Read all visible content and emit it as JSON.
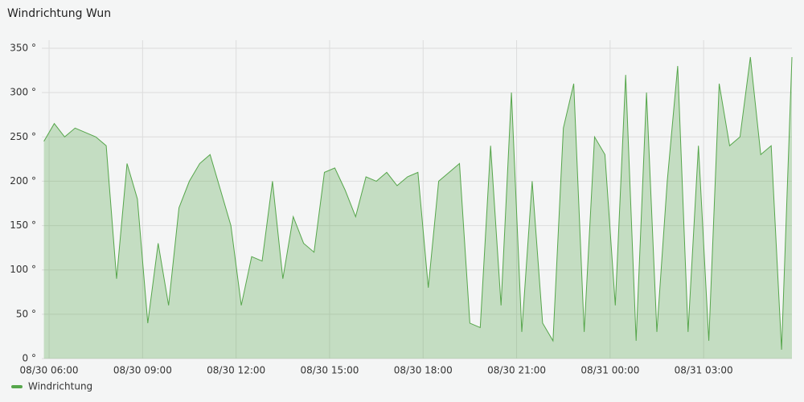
{
  "chart_data": {
    "type": "area",
    "title": "Windrichtung Wun",
    "x": [
      "08/30 05:50",
      "08/30 06:10",
      "08/30 06:30",
      "08/30 06:50",
      "08/30 07:10",
      "08/30 07:30",
      "08/30 07:50",
      "08/30 08:10",
      "08/30 08:30",
      "08/30 08:50",
      "08/30 09:10",
      "08/30 09:30",
      "08/30 09:50",
      "08/30 10:10",
      "08/30 10:30",
      "08/30 10:50",
      "08/30 11:10",
      "08/30 11:30",
      "08/30 11:50",
      "08/30 12:10",
      "08/30 12:30",
      "08/30 12:50",
      "08/30 13:10",
      "08/30 13:30",
      "08/30 13:50",
      "08/30 14:10",
      "08/30 14:30",
      "08/30 14:50",
      "08/30 15:10",
      "08/30 15:30",
      "08/30 15:50",
      "08/30 16:10",
      "08/30 16:30",
      "08/30 16:50",
      "08/30 17:10",
      "08/30 17:30",
      "08/30 17:50",
      "08/30 18:10",
      "08/30 18:30",
      "08/30 18:50",
      "08/30 19:10",
      "08/30 19:30",
      "08/30 19:50",
      "08/30 20:10",
      "08/30 20:30",
      "08/30 20:50",
      "08/30 21:10",
      "08/30 21:30",
      "08/30 21:50",
      "08/30 22:10",
      "08/30 22:30",
      "08/30 22:50",
      "08/30 23:10",
      "08/30 23:30",
      "08/30 23:50",
      "08/31 00:10",
      "08/31 00:30",
      "08/31 00:50",
      "08/31 01:10",
      "08/31 01:30",
      "08/31 01:50",
      "08/31 02:10",
      "08/31 02:30",
      "08/31 02:50",
      "08/31 03:10",
      "08/31 03:30",
      "08/31 03:50",
      "08/31 04:10",
      "08/31 04:30",
      "08/31 04:50",
      "08/31 05:10",
      "08/31 05:30",
      "08/31 05:50"
    ],
    "series": [
      {
        "name": "Windrichtung",
        "color": "#56a64b",
        "values": [
          245,
          265,
          250,
          260,
          255,
          250,
          240,
          90,
          220,
          180,
          40,
          130,
          60,
          170,
          200,
          220,
          230,
          190,
          150,
          60,
          115,
          110,
          200,
          90,
          160,
          130,
          120,
          210,
          215,
          190,
          160,
          205,
          200,
          210,
          195,
          205,
          210,
          80,
          200,
          210,
          220,
          40,
          35,
          240,
          60,
          300,
          30,
          200,
          40,
          20,
          260,
          310,
          30,
          250,
          230,
          60,
          320,
          20,
          300,
          30,
          200,
          330,
          30,
          240,
          20,
          310,
          240,
          250,
          340,
          230,
          240,
          10,
          340
        ]
      }
    ],
    "xlim": [
      "08/30 05:46",
      "08/31 05:50"
    ],
    "xticks": [
      "08/30 06:00",
      "08/30 09:00",
      "08/30 12:00",
      "08/30 15:00",
      "08/30 18:00",
      "08/30 21:00",
      "08/31 00:00",
      "08/31 03:00"
    ],
    "ylim": [
      0,
      350
    ],
    "yticks": [
      {
        "value": 0,
        "label": "0 °"
      },
      {
        "value": 50,
        "label": "50 °"
      },
      {
        "value": 100,
        "label": "100 °"
      },
      {
        "value": 150,
        "label": "150 °"
      },
      {
        "value": 200,
        "label": "200 °"
      },
      {
        "value": 250,
        "label": "250 °"
      },
      {
        "value": 300,
        "label": "300 °"
      },
      {
        "value": 350,
        "label": "350 °"
      }
    ],
    "grid": true,
    "legend": "bottom-left"
  }
}
